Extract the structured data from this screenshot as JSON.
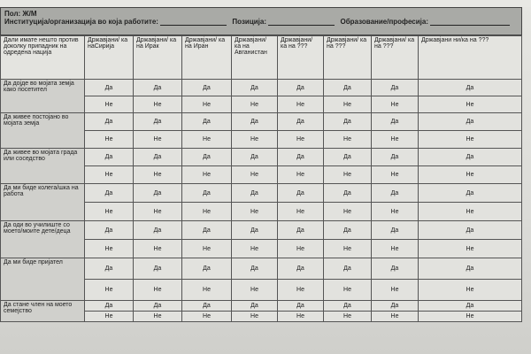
{
  "form": {
    "gender_label": "Пол: Ж/М",
    "institution_label": "Институција/организација во која работите:",
    "position_label": "Позиција:",
    "education_label": "Образование/професија:"
  },
  "table": {
    "corner_header": "Дали имате нешто против доколку припадник на одредена нација",
    "columns": [
      "Државјани/ ка наСирија",
      "Државјани/ ка на Ирак",
      "Државјани/ ка на Иран",
      "Државјани/ ка на Авганистан",
      "Државјани/ ка на ???",
      "Државјани/ ка на ???",
      "Државјани/ ка на ???",
      "Државјани ни/ка на ???"
    ],
    "yes": "Да",
    "no": "Не",
    "questions": [
      "Да дојде во мојата земја како посетител",
      "Да живее постојано во мојата земја",
      "Да живее во мојата града или соседство",
      "Да ми биде колега/шка на работа",
      "Да оди во училиште со моето/моите дете/деца",
      "Да ми биде пријател",
      "Да стане член на моето семејство"
    ]
  }
}
